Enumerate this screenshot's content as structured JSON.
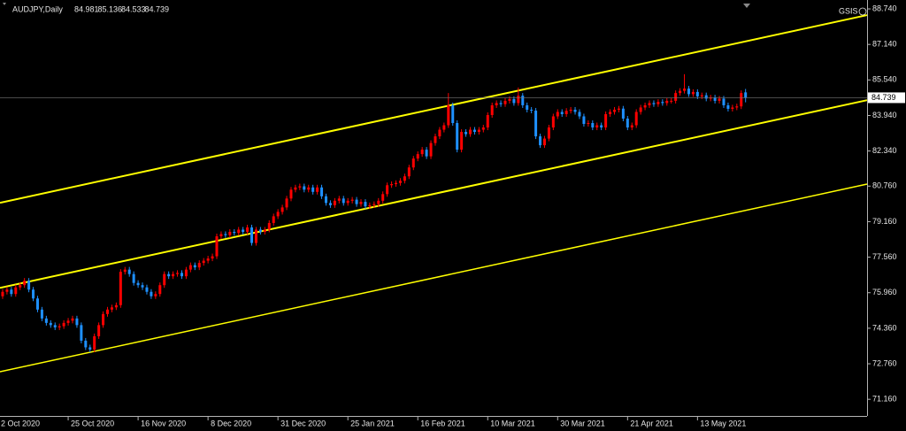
{
  "chart_data": {
    "type": "candlestick",
    "title": "AUDJPY,Daily",
    "corner_label": "GSIS",
    "up_color": "#ff0000",
    "down_color": "#1e90ff",
    "axis_color": "#b4b4b4",
    "background": "#000000",
    "xlim": [
      -0.6,
      197.8
    ],
    "ylim": [
      70.41,
      89.14
    ],
    "yticks": [
      {
        "value": 88.74,
        "label": "88.740"
      },
      {
        "value": 87.14,
        "label": "87.140"
      },
      {
        "value": 85.54,
        "label": "85.540"
      },
      {
        "value": 83.94,
        "label": "83.940"
      },
      {
        "value": 82.34,
        "label": "82.340"
      },
      {
        "value": 80.76,
        "label": "80.760"
      },
      {
        "value": 79.16,
        "label": "79.160"
      },
      {
        "value": 77.56,
        "label": "77.560"
      },
      {
        "value": 75.96,
        "label": "75.960"
      },
      {
        "value": 74.36,
        "label": "74.360"
      },
      {
        "value": 72.76,
        "label": "72.760"
      },
      {
        "value": 71.16,
        "label": "71.160"
      }
    ],
    "xticks": [
      {
        "value": -1,
        "label": "2 Oct 2020"
      },
      {
        "value": 15,
        "label": "25 Oct 2020"
      },
      {
        "value": 31,
        "label": "16 Nov 2020"
      },
      {
        "value": 47,
        "label": "8 Dec 2020"
      },
      {
        "value": 63,
        "label": "31 Dec 2020"
      },
      {
        "value": 79,
        "label": "25 Jan 2021"
      },
      {
        "value": 95,
        "label": "16 Feb 2021"
      },
      {
        "value": 111,
        "label": "10 Mar 2021"
      },
      {
        "value": 127,
        "label": "30 Mar 2021"
      },
      {
        "value": 143,
        "label": "21 Apr 2021"
      },
      {
        "value": 159,
        "label": "13 May 2021"
      }
    ],
    "open": [
      75.8,
      76.0,
      76.1,
      75.9,
      76.2,
      76.3,
      76.5,
      76.1,
      75.7,
      75.2,
      74.8,
      74.6,
      74.5,
      74.4,
      74.45,
      74.6,
      74.7,
      74.8,
      74.5,
      73.8,
      73.5,
      73.4,
      74.0,
      74.5,
      75.0,
      75.2,
      75.3,
      75.4,
      76.9,
      77.0,
      76.8,
      76.4,
      76.3,
      76.2,
      76.0,
      75.8,
      75.9,
      76.3,
      76.8,
      76.7,
      76.8,
      76.85,
      76.7,
      77.0,
      77.2,
      77.1,
      77.3,
      77.4,
      77.5,
      77.6,
      78.5,
      78.6,
      78.55,
      78.7,
      78.65,
      78.8,
      78.7,
      78.9,
      78.2,
      78.8,
      78.7,
      78.8,
      79.1,
      79.4,
      79.6,
      79.8,
      80.2,
      80.6,
      80.7,
      80.75,
      80.6,
      80.7,
      80.5,
      80.7,
      80.3,
      80.0,
      79.9,
      80.1,
      80.2,
      80.0,
      80.1,
      80.15,
      79.95,
      80.05,
      79.85,
      79.9,
      79.95,
      80.1,
      80.4,
      80.8,
      80.85,
      80.9,
      81.0,
      81.2,
      81.6,
      82.0,
      82.2,
      82.4,
      82.1,
      82.7,
      83.0,
      83.3,
      83.5,
      84.4,
      83.6,
      82.4,
      83.2,
      83.1,
      83.3,
      83.2,
      83.3,
      83.4,
      83.96,
      84.4,
      84.5,
      84.45,
      84.6,
      84.68,
      84.5,
      84.83,
      84.4,
      84.2,
      84.16,
      83.0,
      82.6,
      82.9,
      83.4,
      83.9,
      84.1,
      84.0,
      84.15,
      84.2,
      84.1,
      83.9,
      83.56,
      83.6,
      83.4,
      83.5,
      83.4,
      84.0,
      84.1,
      84.2,
      84.25,
      83.8,
      83.4,
      83.5,
      84.1,
      84.3,
      84.4,
      84.5,
      84.45,
      84.55,
      84.5,
      84.6,
      84.6,
      84.95,
      85.05,
      85.15,
      84.9,
      85.0,
      84.8,
      84.85,
      84.7,
      84.75,
      84.6,
      84.7,
      84.4,
      84.24,
      84.3,
      84.35,
      84.981
    ],
    "high": [
      76.12,
      76.22,
      76.22,
      76.32,
      76.42,
      76.62,
      76.62,
      76.22,
      75.82,
      75.32,
      74.92,
      74.72,
      74.62,
      74.57,
      74.72,
      74.82,
      74.92,
      74.92,
      74.62,
      73.92,
      73.62,
      74.12,
      74.62,
      75.12,
      75.32,
      75.42,
      75.52,
      77.02,
      77.12,
      77.12,
      76.92,
      76.52,
      76.42,
      76.32,
      76.12,
      76.02,
      76.42,
      76.92,
      76.92,
      76.92,
      76.97,
      76.97,
      77.12,
      77.32,
      77.32,
      77.42,
      77.52,
      77.62,
      77.72,
      78.62,
      78.72,
      78.72,
      78.82,
      78.82,
      78.92,
      78.92,
      79.02,
      79.02,
      78.92,
      78.92,
      78.92,
      79.22,
      79.52,
      79.72,
      79.92,
      80.32,
      80.72,
      80.82,
      80.87,
      80.87,
      80.82,
      80.82,
      80.82,
      80.82,
      80.42,
      80.12,
      80.22,
      80.32,
      80.32,
      80.22,
      80.27,
      80.27,
      80.17,
      80.17,
      80.02,
      80.07,
      80.22,
      80.52,
      80.92,
      80.97,
      81.02,
      81.12,
      81.32,
      81.72,
      82.12,
      82.32,
      82.52,
      82.52,
      82.82,
      83.12,
      83.42,
      83.62,
      84.95,
      84.52,
      83.72,
      83.32,
      83.32,
      83.42,
      83.42,
      83.42,
      83.52,
      84.08,
      84.52,
      84.62,
      84.62,
      84.72,
      84.8,
      84.8,
      85.2,
      84.95,
      84.52,
      84.32,
      84.28,
      83.12,
      83.02,
      83.52,
      84.02,
      84.22,
      84.22,
      84.27,
      84.32,
      84.32,
      84.22,
      84.02,
      83.72,
      83.72,
      83.62,
      83.62,
      84.12,
      84.22,
      84.32,
      84.37,
      84.37,
      83.92,
      83.62,
      84.22,
      84.42,
      84.52,
      84.62,
      84.62,
      84.67,
      84.67,
      84.72,
      84.72,
      85.07,
      85.17,
      85.8,
      85.27,
      85.12,
      85.12,
      84.97,
      84.97,
      84.87,
      84.87,
      84.82,
      84.82,
      84.52,
      84.42,
      84.47,
      85.07,
      85.136
    ],
    "low": [
      75.68,
      75.88,
      75.78,
      75.78,
      76.08,
      76.18,
      75.98,
      75.58,
      75.08,
      74.68,
      74.48,
      74.38,
      74.28,
      74.28,
      74.33,
      74.48,
      74.58,
      74.38,
      73.68,
      73.38,
      73.28,
      73.28,
      73.88,
      74.38,
      74.88,
      75.08,
      75.18,
      75.28,
      76.78,
      76.68,
      76.28,
      76.18,
      76.08,
      75.88,
      75.68,
      75.68,
      75.78,
      76.18,
      76.58,
      76.58,
      76.68,
      76.58,
      76.58,
      76.88,
      76.98,
      76.98,
      77.18,
      77.28,
      77.38,
      77.48,
      78.38,
      78.43,
      78.43,
      78.53,
      78.53,
      78.58,
      78.58,
      78.08,
      78.08,
      78.58,
      78.58,
      78.68,
      78.98,
      79.28,
      79.48,
      79.68,
      80.08,
      80.48,
      80.58,
      80.48,
      80.48,
      80.38,
      80.38,
      80.18,
      79.88,
      79.78,
      79.78,
      79.98,
      79.88,
      79.88,
      79.98,
      79.83,
      79.83,
      79.73,
      79.73,
      79.78,
      79.83,
      79.98,
      80.28,
      80.68,
      80.73,
      80.78,
      80.88,
      81.08,
      81.48,
      81.88,
      82.08,
      81.98,
      81.98,
      82.58,
      82.88,
      83.18,
      83.38,
      83.48,
      82.28,
      82.28,
      82.98,
      82.98,
      83.08,
      83.08,
      83.18,
      83.28,
      83.84,
      84.28,
      84.33,
      84.33,
      84.48,
      84.38,
      84.38,
      84.28,
      84.08,
      84.04,
      82.88,
      82.48,
      82.48,
      82.78,
      83.28,
      83.78,
      83.88,
      83.88,
      84.03,
      83.98,
      83.78,
      83.44,
      83.44,
      83.28,
      83.28,
      83.28,
      83.28,
      83.88,
      83.98,
      84.08,
      83.68,
      83.28,
      83.28,
      83.38,
      83.98,
      84.18,
      84.28,
      84.33,
      84.33,
      84.38,
      84.38,
      84.48,
      84.48,
      84.83,
      84.93,
      84.78,
      84.78,
      84.68,
      84.68,
      84.58,
      84.58,
      84.48,
      84.48,
      84.28,
      84.12,
      84.12,
      84.18,
      84.23,
      84.533
    ],
    "close": [
      76.0,
      76.1,
      75.9,
      76.2,
      76.3,
      76.5,
      76.1,
      75.7,
      75.2,
      74.8,
      74.6,
      74.5,
      74.4,
      74.45,
      74.6,
      74.7,
      74.8,
      74.5,
      73.8,
      73.5,
      73.4,
      74.0,
      74.5,
      75.0,
      75.2,
      75.3,
      75.4,
      76.9,
      77.0,
      76.8,
      76.4,
      76.3,
      76.2,
      76.0,
      75.8,
      75.9,
      76.3,
      76.8,
      76.7,
      76.8,
      76.85,
      76.7,
      77.0,
      77.2,
      77.1,
      77.3,
      77.4,
      77.5,
      77.6,
      78.5,
      78.6,
      78.55,
      78.7,
      78.65,
      78.8,
      78.7,
      78.9,
      78.2,
      78.8,
      78.7,
      78.8,
      79.1,
      79.4,
      79.6,
      79.8,
      80.2,
      80.6,
      80.7,
      80.75,
      80.6,
      80.7,
      80.5,
      80.7,
      80.3,
      80.0,
      79.9,
      80.1,
      80.2,
      80.0,
      80.1,
      80.15,
      79.95,
      80.05,
      79.85,
      79.9,
      79.95,
      80.1,
      80.4,
      80.8,
      80.85,
      80.9,
      81.0,
      81.2,
      81.6,
      82.0,
      82.2,
      82.4,
      82.1,
      82.7,
      83.0,
      83.3,
      83.5,
      84.4,
      83.6,
      82.4,
      83.2,
      83.1,
      83.3,
      83.2,
      83.3,
      83.4,
      83.96,
      84.4,
      84.5,
      84.45,
      84.6,
      84.68,
      84.5,
      84.83,
      84.4,
      84.2,
      84.16,
      83.0,
      82.6,
      82.9,
      83.4,
      83.9,
      84.1,
      84.0,
      84.15,
      84.2,
      84.1,
      83.9,
      83.56,
      83.6,
      83.4,
      83.5,
      83.4,
      84.0,
      84.1,
      84.2,
      84.25,
      83.8,
      83.4,
      83.5,
      84.1,
      84.3,
      84.4,
      84.5,
      84.45,
      84.55,
      84.5,
      84.6,
      84.6,
      84.95,
      85.05,
      85.15,
      84.9,
      85.0,
      84.8,
      84.85,
      84.7,
      84.75,
      84.6,
      84.7,
      84.4,
      84.24,
      84.3,
      84.35,
      84.95,
      84.739
    ],
    "trendlines": [
      {
        "color": "#ffff00",
        "x": [
          -0.6,
          197.8
        ],
        "y": [
          80.01,
          88.46
        ]
      },
      {
        "color": "#ffff00",
        "x": [
          -0.6,
          197.8
        ],
        "y": [
          76.18,
          84.63
        ]
      },
      {
        "color": "#ffff00",
        "x": [
          -0.6,
          197.8
        ],
        "y": [
          72.4,
          80.85
        ]
      }
    ]
  }
}
